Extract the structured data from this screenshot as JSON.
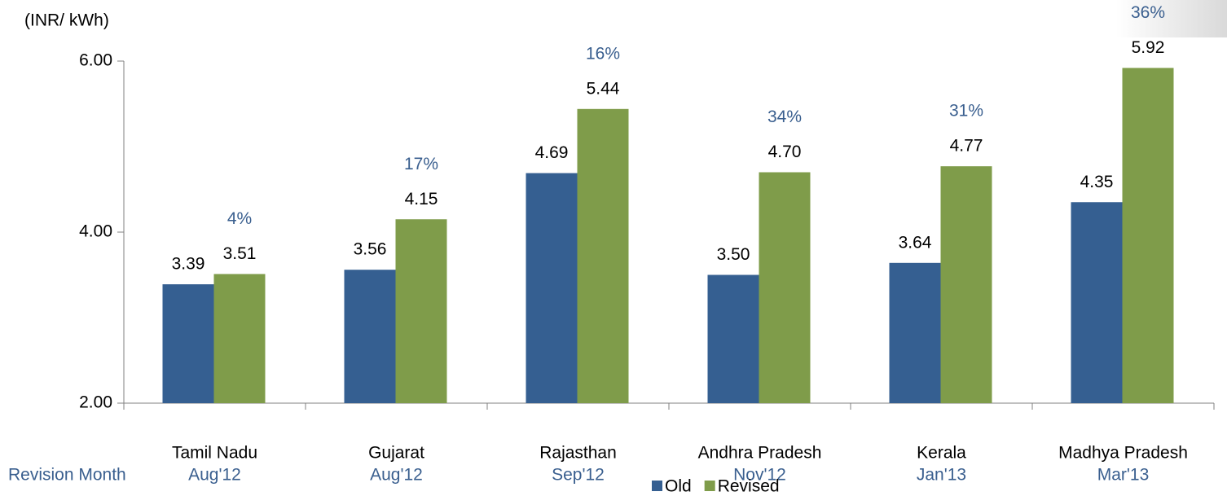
{
  "chart_data": {
    "type": "bar",
    "y_label": "(INR/ kWh)",
    "categories": [
      "Tamil Nadu",
      "Gujarat",
      "Rajasthan",
      "Andhra Pradesh",
      "Kerala",
      "Madhya Pradesh"
    ],
    "revision_label": "Revision Month",
    "revision_months": [
      "Aug'12",
      "Aug'12",
      "Sep'12",
      "Nov'12",
      "Jan'13",
      "Mar'13"
    ],
    "annotations": [
      "4%",
      "17%",
      "16%",
      "34%",
      "31%",
      "36%"
    ],
    "series": [
      {
        "name": "Old",
        "color": "#355f91",
        "values": [
          3.39,
          3.56,
          4.69,
          3.5,
          3.64,
          4.35
        ],
        "value_labels": [
          "3.39",
          "3.56",
          "4.69",
          "3.50",
          "3.64",
          "4.35"
        ]
      },
      {
        "name": "Revised",
        "color": "#7f9c4a",
        "values": [
          3.51,
          4.15,
          5.44,
          4.7,
          4.77,
          5.92
        ],
        "value_labels": [
          "3.51",
          "4.15",
          "5.44",
          "4.70",
          "4.77",
          "5.92"
        ]
      }
    ],
    "ylim": [
      2,
      6
    ],
    "yticks": [
      {
        "value": 2,
        "label": "2.00"
      },
      {
        "value": 4,
        "label": "4.00"
      },
      {
        "value": 6,
        "label": "6.00"
      }
    ],
    "grid": false,
    "legend": "bottom"
  }
}
